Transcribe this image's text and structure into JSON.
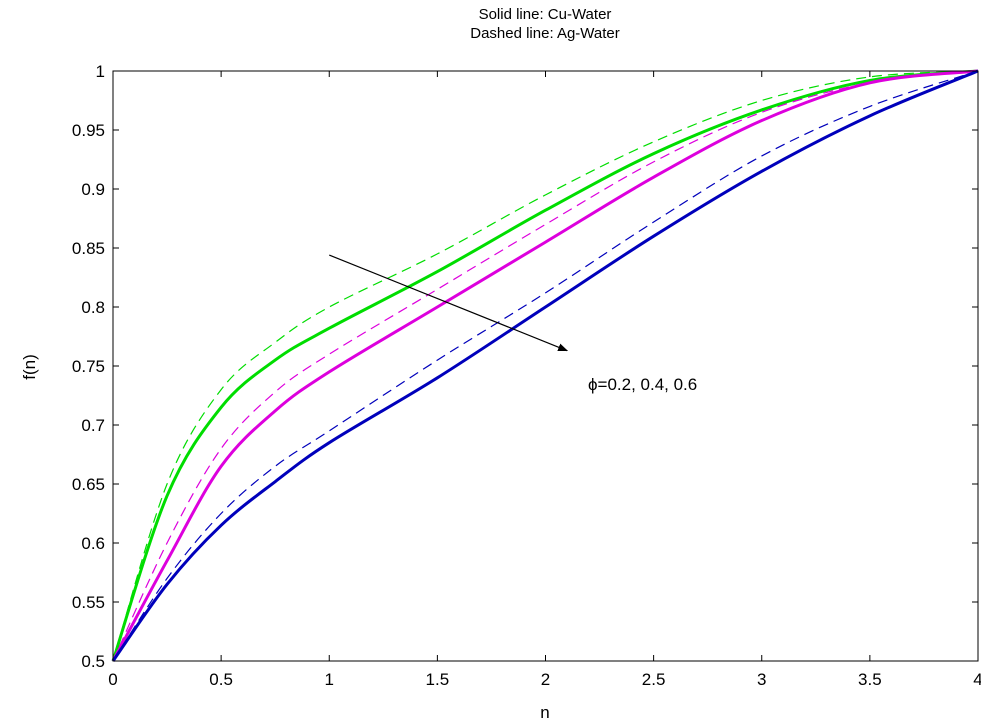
{
  "chart_data": {
    "type": "line",
    "title_lines": [
      "Solid line: Cu-Water",
      "Dashed line: Ag-Water"
    ],
    "xlabel": "n",
    "ylabel": "f(n)",
    "xlim": [
      0,
      4
    ],
    "ylim": [
      0.5,
      1
    ],
    "xticks": [
      0,
      0.5,
      1,
      1.5,
      2,
      2.5,
      3,
      3.5,
      4
    ],
    "xtick_labels": [
      "0",
      "0.5",
      "1",
      "1.5",
      "2",
      "2.5",
      "3",
      "3.5",
      "4"
    ],
    "yticks": [
      0.5,
      0.55,
      0.6,
      0.65,
      0.7,
      0.75,
      0.8,
      0.85,
      0.9,
      0.95,
      1
    ],
    "ytick_labels": [
      "0.5",
      "0.55",
      "0.6",
      "0.65",
      "0.7",
      "0.75",
      "0.8",
      "0.85",
      "0.9",
      "0.95",
      "1"
    ],
    "grid": false,
    "annotation": {
      "text": "ϕ=0.2, 0.4, 0.6",
      "arrow_from": [
        1.0,
        0.844
      ],
      "arrow_to": [
        2.1,
        0.763
      ]
    },
    "x": [
      0,
      0.25,
      0.5,
      0.75,
      1,
      1.5,
      2,
      2.5,
      3,
      3.5,
      4
    ],
    "series": [
      {
        "color": "#00dd00",
        "style": "solid",
        "width": 3,
        "values": [
          0.5,
          0.64,
          0.715,
          0.755,
          0.782,
          0.83,
          0.882,
          0.93,
          0.967,
          0.992,
          1.0
        ]
      },
      {
        "color": "#00dd00",
        "style": "dashed",
        "width": 1.2,
        "values": [
          0.5,
          0.65,
          0.73,
          0.77,
          0.8,
          0.845,
          0.895,
          0.94,
          0.975,
          0.995,
          1.0
        ]
      },
      {
        "color": "#dd00dd",
        "style": "solid",
        "width": 3,
        "values": [
          0.5,
          0.585,
          0.665,
          0.712,
          0.745,
          0.8,
          0.855,
          0.91,
          0.958,
          0.99,
          1.0
        ]
      },
      {
        "color": "#dd00dd",
        "style": "dashed",
        "width": 1.2,
        "values": [
          0.5,
          0.6,
          0.68,
          0.728,
          0.76,
          0.815,
          0.87,
          0.923,
          0.965,
          0.99,
          1.0
        ]
      },
      {
        "color": "#0000bb",
        "style": "solid",
        "width": 3,
        "values": [
          0.5,
          0.565,
          0.615,
          0.652,
          0.685,
          0.74,
          0.8,
          0.86,
          0.915,
          0.962,
          1.0
        ]
      },
      {
        "color": "#0000bb",
        "style": "dashed",
        "width": 1.2,
        "values": [
          0.5,
          0.57,
          0.625,
          0.665,
          0.695,
          0.755,
          0.812,
          0.872,
          0.928,
          0.97,
          1.0
        ]
      }
    ]
  }
}
